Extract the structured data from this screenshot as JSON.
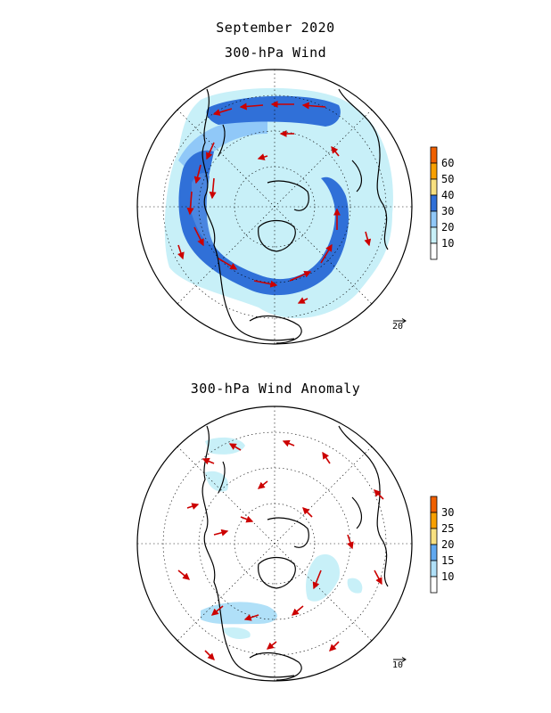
{
  "header": {
    "line1": "September 2020",
    "line2": "300-hPa Wind"
  },
  "anomaly": {
    "title": "300-hPa Wind Anomaly"
  },
  "colors": {
    "coast": "#000000",
    "vector": "#cc0000",
    "grid": "#000000"
  },
  "top_map": {
    "colorbar": [
      {
        "label": "60",
        "color": "#f06000"
      },
      {
        "label": "50",
        "color": "#f8a000"
      },
      {
        "label": "40",
        "color": "#f8e080"
      },
      {
        "label": "30",
        "color": "#3070d8"
      },
      {
        "label": "20",
        "color": "#90c8f8"
      },
      {
        "label": "10",
        "color": "#c8f0f8"
      },
      {
        "label": "",
        "color": "#ffffff"
      }
    ],
    "reference_vector": "20"
  },
  "bottom_map": {
    "colorbar": [
      {
        "label": "30",
        "color": "#f06000"
      },
      {
        "label": "25",
        "color": "#f8a000"
      },
      {
        "label": "20",
        "color": "#f8e080"
      },
      {
        "label": "15",
        "color": "#60a8f0"
      },
      {
        "label": "10",
        "color": "#b0e0f8"
      },
      {
        "label": "",
        "color": "#ffffff"
      }
    ],
    "reference_vector": "10"
  }
}
